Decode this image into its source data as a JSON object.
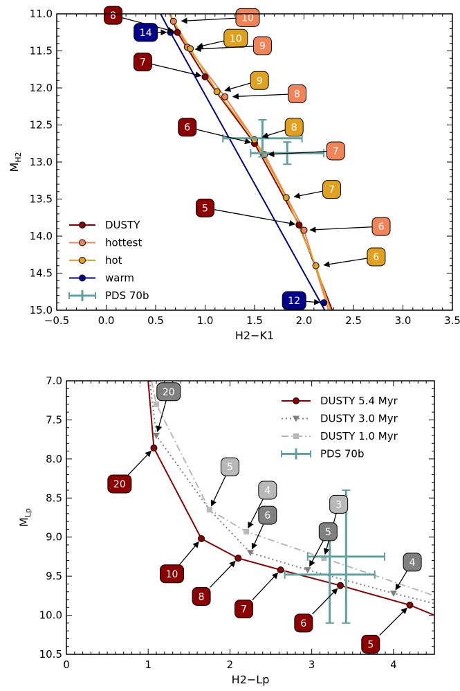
{
  "chart_data": [
    {
      "type": "line",
      "id": "top",
      "xlabel": "H2−K1",
      "ylabel": "M",
      "ylabel_sub": "H2",
      "xlim": [
        -0.5,
        3.5
      ],
      "ylim": [
        15.0,
        11.0
      ],
      "y_inverted": true,
      "xticks": [
        -0.5,
        0.0,
        0.5,
        1.0,
        1.5,
        2.0,
        2.5,
        3.0,
        3.5
      ],
      "xtick_labels": [
        "−0.5",
        "0.0",
        "0.5",
        "1.0",
        "1.5",
        "2.0",
        "2.5",
        "3.0",
        "3.5"
      ],
      "yticks": [
        11.0,
        11.5,
        12.0,
        12.5,
        13.0,
        13.5,
        14.0,
        14.5,
        15.0
      ],
      "ytick_labels": [
        "11.0",
        "11.5",
        "12.0",
        "12.5",
        "13.0",
        "13.5",
        "14.0",
        "14.5",
        "15.0"
      ],
      "grid": false,
      "legend": "bottom-left",
      "series": [
        {
          "name": "DUSTY",
          "color": "#8b0000",
          "marker": "circle",
          "dash": "",
          "line": [
            [
              0.6,
              10.85
            ],
            [
              0.72,
              11.25
            ],
            [
              1.0,
              11.85
            ],
            [
              1.5,
              12.75
            ],
            [
              1.95,
              13.85
            ],
            [
              2.3,
              15.05
            ]
          ],
          "points": [
            [
              0.72,
              11.25
            ],
            [
              1.0,
              11.85
            ],
            [
              1.5,
              12.75
            ],
            [
              1.95,
              13.85
            ]
          ]
        },
        {
          "name": "hottest",
          "color": "#f08458",
          "marker": "circle",
          "dash": "",
          "line": [
            [
              0.62,
              10.9
            ],
            [
              0.68,
              11.1
            ],
            [
              0.82,
              11.45
            ],
            [
              1.2,
              12.12
            ],
            [
              1.6,
              12.9
            ],
            [
              2.0,
              13.92
            ],
            [
              2.26,
              15.05
            ]
          ],
          "points": [
            [
              0.68,
              11.1
            ],
            [
              0.82,
              11.45
            ],
            [
              1.2,
              12.12
            ],
            [
              1.6,
              12.9
            ],
            [
              2.0,
              13.92
            ]
          ]
        },
        {
          "name": "hot",
          "color": "#e0a020",
          "marker": "circle",
          "dash": "",
          "line": [
            [
              0.62,
              10.9
            ],
            [
              0.68,
              11.1
            ],
            [
              0.85,
              11.47
            ],
            [
              1.12,
              12.05
            ],
            [
              1.5,
              12.7
            ],
            [
              1.82,
              13.48
            ],
            [
              2.12,
              14.4
            ],
            [
              2.28,
              15.05
            ]
          ],
          "points": [
            [
              0.85,
              11.47
            ],
            [
              1.12,
              12.05
            ],
            [
              1.5,
              12.7
            ],
            [
              1.82,
              13.48
            ],
            [
              2.12,
              14.4
            ]
          ]
        },
        {
          "name": "warm",
          "color": "#00008b",
          "marker": "circle",
          "dash": "",
          "line": [
            [
              0.55,
              11.0
            ],
            [
              0.65,
              11.25
            ],
            [
              2.21,
              15.0
            ]
          ],
          "points": [
            [
              0.65,
              11.25
            ],
            [
              2.2,
              14.9
            ]
          ]
        }
      ],
      "errorbar_series": {
        "name": "PDS 70b",
        "color": "#5fa0a0",
        "points": [
          {
            "x": 1.58,
            "y": 12.68,
            "xerr": 0.4,
            "yerr": 0.25
          },
          {
            "x": 1.83,
            "y": 12.88,
            "xerr": 0.37,
            "yerr": 0.15
          }
        ]
      },
      "labels": [
        {
          "text": "8",
          "color": "#8b0000",
          "lx": 0.07,
          "ly": 11.02,
          "tx": 0.72,
          "ty": 11.25
        },
        {
          "text": "10",
          "color": "#f08458",
          "lx": 1.43,
          "ly": 11.05,
          "tx": 0.72,
          "ty": 11.1
        },
        {
          "text": "14",
          "color": "#00008b",
          "lx": 0.4,
          "ly": 11.25,
          "tx": 0.65,
          "ty": 11.25
        },
        {
          "text": "10",
          "color": "#e0a020",
          "lx": 1.31,
          "ly": 11.33,
          "tx": 0.88,
          "ty": 11.46
        },
        {
          "text": "9",
          "color": "#f08458",
          "lx": 1.58,
          "ly": 11.43,
          "tx": 0.86,
          "ty": 11.48
        },
        {
          "text": "7",
          "color": "#8b0000",
          "lx": 0.37,
          "ly": 11.65,
          "tx": 1.0,
          "ty": 11.85
        },
        {
          "text": "9",
          "color": "#e0a020",
          "lx": 1.55,
          "ly": 11.9,
          "tx": 1.16,
          "ty": 12.05
        },
        {
          "text": "8",
          "color": "#f08458",
          "lx": 1.93,
          "ly": 12.08,
          "tx": 1.24,
          "ty": 12.12
        },
        {
          "text": "6",
          "color": "#8b0000",
          "lx": 0.82,
          "ly": 12.53,
          "tx": 1.5,
          "ty": 12.75
        },
        {
          "text": "8",
          "color": "#e0a020",
          "lx": 1.9,
          "ly": 12.53,
          "tx": 1.54,
          "ty": 12.68
        },
        {
          "text": "7",
          "color": "#f08458",
          "lx": 2.32,
          "ly": 12.85,
          "tx": 1.6,
          "ty": 12.9
        },
        {
          "text": "7",
          "color": "#e0a020",
          "lx": 2.28,
          "ly": 13.37,
          "tx": 1.86,
          "ty": 13.48
        },
        {
          "text": "5",
          "color": "#8b0000",
          "lx": 1.0,
          "ly": 13.62,
          "tx": 1.95,
          "ty": 13.85
        },
        {
          "text": "6",
          "color": "#f08458",
          "lx": 2.78,
          "ly": 13.87,
          "tx": 2.02,
          "ty": 13.92
        },
        {
          "text": "6",
          "color": "#e0a020",
          "lx": 2.73,
          "ly": 14.28,
          "tx": 2.16,
          "ty": 14.4
        },
        {
          "text": "12",
          "color": "#00008b",
          "lx": 1.9,
          "ly": 14.87,
          "tx": 2.2,
          "ty": 14.9
        }
      ]
    },
    {
      "type": "line",
      "id": "bottom",
      "xlabel": "H2−Lp",
      "ylabel": "M",
      "ylabel_sub": "Lp",
      "xlim": [
        0,
        4.5
      ],
      "ylim": [
        10.5,
        7.0
      ],
      "y_inverted": true,
      "xticks": [
        0,
        1,
        2,
        3,
        4
      ],
      "xtick_labels": [
        "0",
        "1",
        "2",
        "3",
        "4"
      ],
      "yticks": [
        7.0,
        7.5,
        8.0,
        8.5,
        9.0,
        9.5,
        10.0,
        10.5
      ],
      "ytick_labels": [
        "7.0",
        "7.5",
        "8.0",
        "8.5",
        "9.0",
        "9.5",
        "10.0",
        "10.5"
      ],
      "grid": false,
      "legend": "top-right",
      "series": [
        {
          "name": "DUSTY 5.4 Myr",
          "color": "#8b0000",
          "marker": "circle",
          "dash": "",
          "line": [
            [
              1.0,
              7.0
            ],
            [
              1.07,
              7.86
            ],
            [
              1.65,
              9.02
            ],
            [
              2.1,
              9.27
            ],
            [
              2.62,
              9.42
            ],
            [
              3.35,
              9.62
            ],
            [
              4.2,
              9.87
            ],
            [
              4.5,
              10.0
            ]
          ],
          "points": [
            [
              1.07,
              7.86
            ],
            [
              1.65,
              9.02
            ],
            [
              2.1,
              9.27
            ],
            [
              2.62,
              9.42
            ],
            [
              3.35,
              9.62
            ],
            [
              4.2,
              9.87
            ]
          ]
        },
        {
          "name": "DUSTY 3.0 Myr",
          "color": "#808080",
          "marker": "triangle",
          "dash": "2 4",
          "line": [
            [
              1.02,
              7.0
            ],
            [
              1.1,
              7.7
            ],
            [
              1.75,
              8.65
            ],
            [
              2.25,
              9.2
            ],
            [
              2.95,
              9.42
            ],
            [
              4.0,
              9.72
            ],
            [
              4.5,
              9.85
            ]
          ],
          "points": [
            [
              1.1,
              7.7
            ],
            [
              2.25,
              9.2
            ],
            [
              2.95,
              9.42
            ],
            [
              4.0,
              9.72
            ]
          ]
        },
        {
          "name": "DUSTY 1.0 Myr",
          "color": "#b8b8b8",
          "marker": "square",
          "dash": "10 4 2 4",
          "line": [
            [
              1.04,
              7.0
            ],
            [
              1.1,
              7.3
            ],
            [
              1.75,
              8.65
            ],
            [
              2.2,
              8.93
            ],
            [
              3.15,
              9.27
            ],
            [
              4.5,
              9.75
            ]
          ],
          "points": [
            [
              1.1,
              7.3
            ],
            [
              1.75,
              8.65
            ],
            [
              2.2,
              8.93
            ],
            [
              3.15,
              9.27
            ]
          ]
        }
      ],
      "errorbar_series": {
        "name": "PDS 70b",
        "color": "#5fa0a0",
        "points": [
          {
            "x": 3.42,
            "y": 9.25,
            "xerr": 0.47,
            "yerr": 0.85
          },
          {
            "x": 3.22,
            "y": 9.48,
            "xerr": 0.55,
            "yerr": 0.62
          }
        ]
      },
      "labels": [
        {
          "text": "20",
          "color": "#808080",
          "lx": 1.25,
          "ly": 7.14,
          "tx": 1.1,
          "ty": 7.7
        },
        {
          "text": "20",
          "color": "#8b0000",
          "lx": 0.65,
          "ly": 8.32,
          "tx": 1.07,
          "ty": 7.86
        },
        {
          "text": "5",
          "color": "#b8b8b8",
          "lx": 2.0,
          "ly": 8.1,
          "tx": 1.75,
          "ty": 8.65
        },
        {
          "text": "4",
          "color": "#b8b8b8",
          "lx": 2.46,
          "ly": 8.4,
          "tx": 2.2,
          "ty": 8.93
        },
        {
          "text": "6",
          "color": "#808080",
          "lx": 2.46,
          "ly": 8.72,
          "tx": 2.25,
          "ty": 9.2
        },
        {
          "text": "3",
          "color": "#b8b8b8",
          "lx": 3.33,
          "ly": 8.58,
          "tx": 3.15,
          "ty": 9.27
        },
        {
          "text": "5",
          "color": "#808080",
          "lx": 3.2,
          "ly": 8.93,
          "tx": 2.95,
          "ty": 9.42
        },
        {
          "text": "4",
          "color": "#808080",
          "lx": 4.23,
          "ly": 9.32,
          "tx": 4.0,
          "ty": 9.72
        },
        {
          "text": "10",
          "color": "#8b0000",
          "lx": 1.29,
          "ly": 9.47,
          "tx": 1.65,
          "ty": 9.02
        },
        {
          "text": "8",
          "color": "#8b0000",
          "lx": 1.65,
          "ly": 9.76,
          "tx": 2.1,
          "ty": 9.27
        },
        {
          "text": "7",
          "color": "#8b0000",
          "lx": 2.17,
          "ly": 9.92,
          "tx": 2.62,
          "ty": 9.42
        },
        {
          "text": "6",
          "color": "#8b0000",
          "lx": 2.9,
          "ly": 10.1,
          "tx": 3.35,
          "ty": 9.62
        },
        {
          "text": "5",
          "color": "#8b0000",
          "lx": 3.72,
          "ly": 10.37,
          "tx": 4.2,
          "ty": 9.87
        }
      ]
    }
  ]
}
